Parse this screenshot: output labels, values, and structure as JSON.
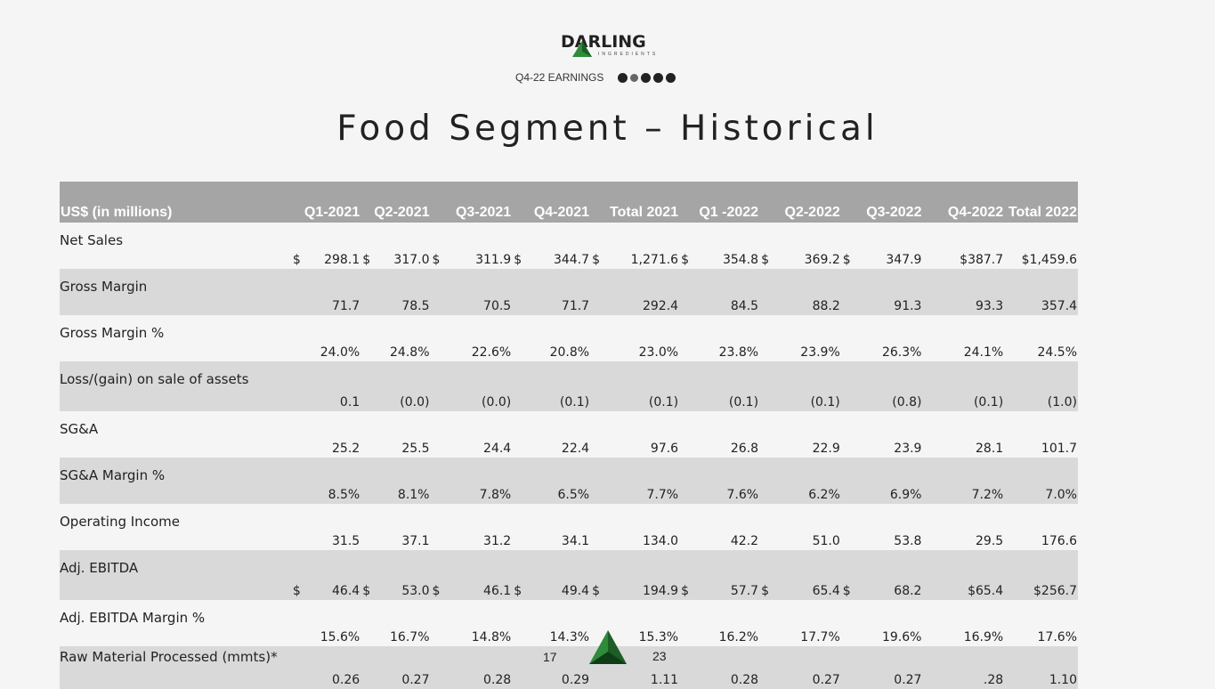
{
  "brand": {
    "name": "DARLING",
    "sub": "INGREDIENTS",
    "color_green": "#2e8b3a",
    "color_dark": "#222222"
  },
  "header": {
    "earnings_label": "Q4-22 EARNINGS",
    "dots_count": 5,
    "dots_active_index": 1
  },
  "title": "Food Segment – Historical",
  "table": {
    "columns": [
      "US$ (in millions)",
      "Q1-2021",
      "Q2-2021",
      "Q3-2021",
      "Q4-2021",
      "Total 2021",
      "Q1 -2022",
      "Q2-2022",
      "Q3-2022",
      "Q4-2022",
      "Total 2022"
    ],
    "rows": [
      {
        "label": "Net Sales",
        "alt": false,
        "cells": [
          [
            "$",
            "298.1"
          ],
          [
            "$",
            "317.0"
          ],
          [
            "$",
            "311.9"
          ],
          [
            "$",
            "344.7"
          ],
          [
            "$",
            "1,271.6"
          ],
          [
            "$",
            "354.8"
          ],
          [
            "$",
            "369.2"
          ],
          [
            "$",
            "347.9"
          ],
          [
            "",
            "$387.7"
          ],
          [
            "",
            "$1,459.6"
          ]
        ]
      },
      {
        "label": "Gross Margin",
        "alt": true,
        "cells": [
          [
            "",
            "71.7"
          ],
          [
            "",
            "78.5"
          ],
          [
            "",
            "70.5"
          ],
          [
            "",
            "71.7"
          ],
          [
            "",
            "292.4"
          ],
          [
            "",
            "84.5"
          ],
          [
            "",
            "88.2"
          ],
          [
            "",
            "91.3"
          ],
          [
            "",
            "93.3"
          ],
          [
            "",
            "357.4"
          ]
        ]
      },
      {
        "label": "Gross Margin %",
        "alt": false,
        "cells": [
          [
            "",
            "24.0%"
          ],
          [
            "",
            "24.8%"
          ],
          [
            "",
            "22.6%"
          ],
          [
            "",
            "20.8%"
          ],
          [
            "",
            "23.0%"
          ],
          [
            "",
            "23.8%"
          ],
          [
            "",
            "23.9%"
          ],
          [
            "",
            "26.3%"
          ],
          [
            "",
            "24.1%"
          ],
          [
            "",
            "24.5%"
          ]
        ]
      },
      {
        "label": "Loss/(gain) on sale of assets",
        "alt": true,
        "tall": true,
        "cells": [
          [
            "",
            "0.1"
          ],
          [
            "",
            "(0.0)"
          ],
          [
            "",
            "(0.0)"
          ],
          [
            "",
            "(0.1)"
          ],
          [
            "",
            "(0.1)"
          ],
          [
            "",
            "(0.1)"
          ],
          [
            "",
            "(0.1)"
          ],
          [
            "",
            "(0.8)"
          ],
          [
            "",
            "(0.1)"
          ],
          [
            "",
            "(1.0)"
          ]
        ]
      },
      {
        "label": "SG&A",
        "alt": false,
        "cells": [
          [
            "",
            "25.2"
          ],
          [
            "",
            "25.5"
          ],
          [
            "",
            "24.4"
          ],
          [
            "",
            "22.4"
          ],
          [
            "",
            "97.6"
          ],
          [
            "",
            "26.8"
          ],
          [
            "",
            "22.9"
          ],
          [
            "",
            "23.9"
          ],
          [
            "",
            "28.1"
          ],
          [
            "",
            "101.7"
          ]
        ]
      },
      {
        "label": "SG&A Margin %",
        "alt": true,
        "cells": [
          [
            "",
            "8.5%"
          ],
          [
            "",
            "8.1%"
          ],
          [
            "",
            "7.8%"
          ],
          [
            "",
            "6.5%"
          ],
          [
            "",
            "7.7%"
          ],
          [
            "",
            "7.6%"
          ],
          [
            "",
            "6.2%"
          ],
          [
            "",
            "6.9%"
          ],
          [
            "",
            "7.2%"
          ],
          [
            "",
            "7.0%"
          ]
        ]
      },
      {
        "label": "Operating Income",
        "alt": false,
        "cells": [
          [
            "",
            "31.5"
          ],
          [
            "",
            "37.1"
          ],
          [
            "",
            "31.2"
          ],
          [
            "",
            "34.1"
          ],
          [
            "",
            "134.0"
          ],
          [
            "",
            "42.2"
          ],
          [
            "",
            "51.0"
          ],
          [
            "",
            "53.8"
          ],
          [
            "",
            "29.5"
          ],
          [
            "",
            "176.6"
          ]
        ]
      },
      {
        "label": "Adj. EBITDA",
        "alt": true,
        "tall": true,
        "cells": [
          [
            "$",
            "46.4"
          ],
          [
            "$",
            "53.0"
          ],
          [
            "$",
            "46.1"
          ],
          [
            "$",
            "49.4"
          ],
          [
            "$",
            "194.9"
          ],
          [
            "$",
            "57.7"
          ],
          [
            "$",
            "65.4"
          ],
          [
            "$",
            "68.2"
          ],
          [
            "",
            "$65.4"
          ],
          [
            "",
            "$256.7"
          ]
        ]
      },
      {
        "label": "Adj. EBITDA Margin %",
        "alt": false,
        "cells": [
          [
            "",
            "15.6%"
          ],
          [
            "",
            "16.7%"
          ],
          [
            "",
            "14.8%"
          ],
          [
            "",
            "14.3%"
          ],
          [
            "",
            "15.3%"
          ],
          [
            "",
            "16.2%"
          ],
          [
            "",
            "17.7%"
          ],
          [
            "",
            "19.6%"
          ],
          [
            "",
            "16.9%"
          ],
          [
            "",
            "17.6%"
          ]
        ]
      },
      {
        "label": "Raw Material Processed (mmts)*",
        "alt": true,
        "tall": true,
        "last": true,
        "cells": [
          [
            "",
            "0.26"
          ],
          [
            "",
            "0.27"
          ],
          [
            "",
            "0.28"
          ],
          [
            "",
            "0.29"
          ],
          [
            "",
            "1.11"
          ],
          [
            "",
            "0.28"
          ],
          [
            "",
            "0.27"
          ],
          [
            "",
            "0.27"
          ],
          [
            "",
            ".28"
          ],
          [
            "",
            "1.10"
          ]
        ]
      }
    ]
  },
  "footer": {
    "page_left": "17",
    "page_right": "23"
  }
}
